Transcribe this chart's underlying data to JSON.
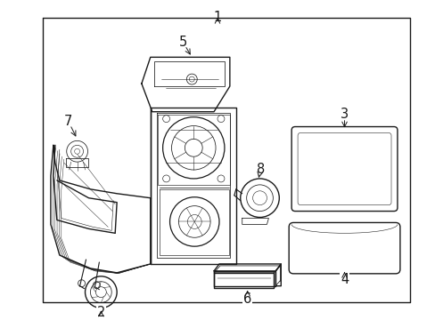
{
  "bg_color": "#ffffff",
  "line_color": "#1a1a1a",
  "lw": 1.0,
  "tlw": 0.55,
  "figsize": [
    4.89,
    3.6
  ],
  "dpi": 100,
  "border": [
    0.095,
    0.055,
    0.945,
    0.955
  ],
  "label_fontsize": 10.5
}
